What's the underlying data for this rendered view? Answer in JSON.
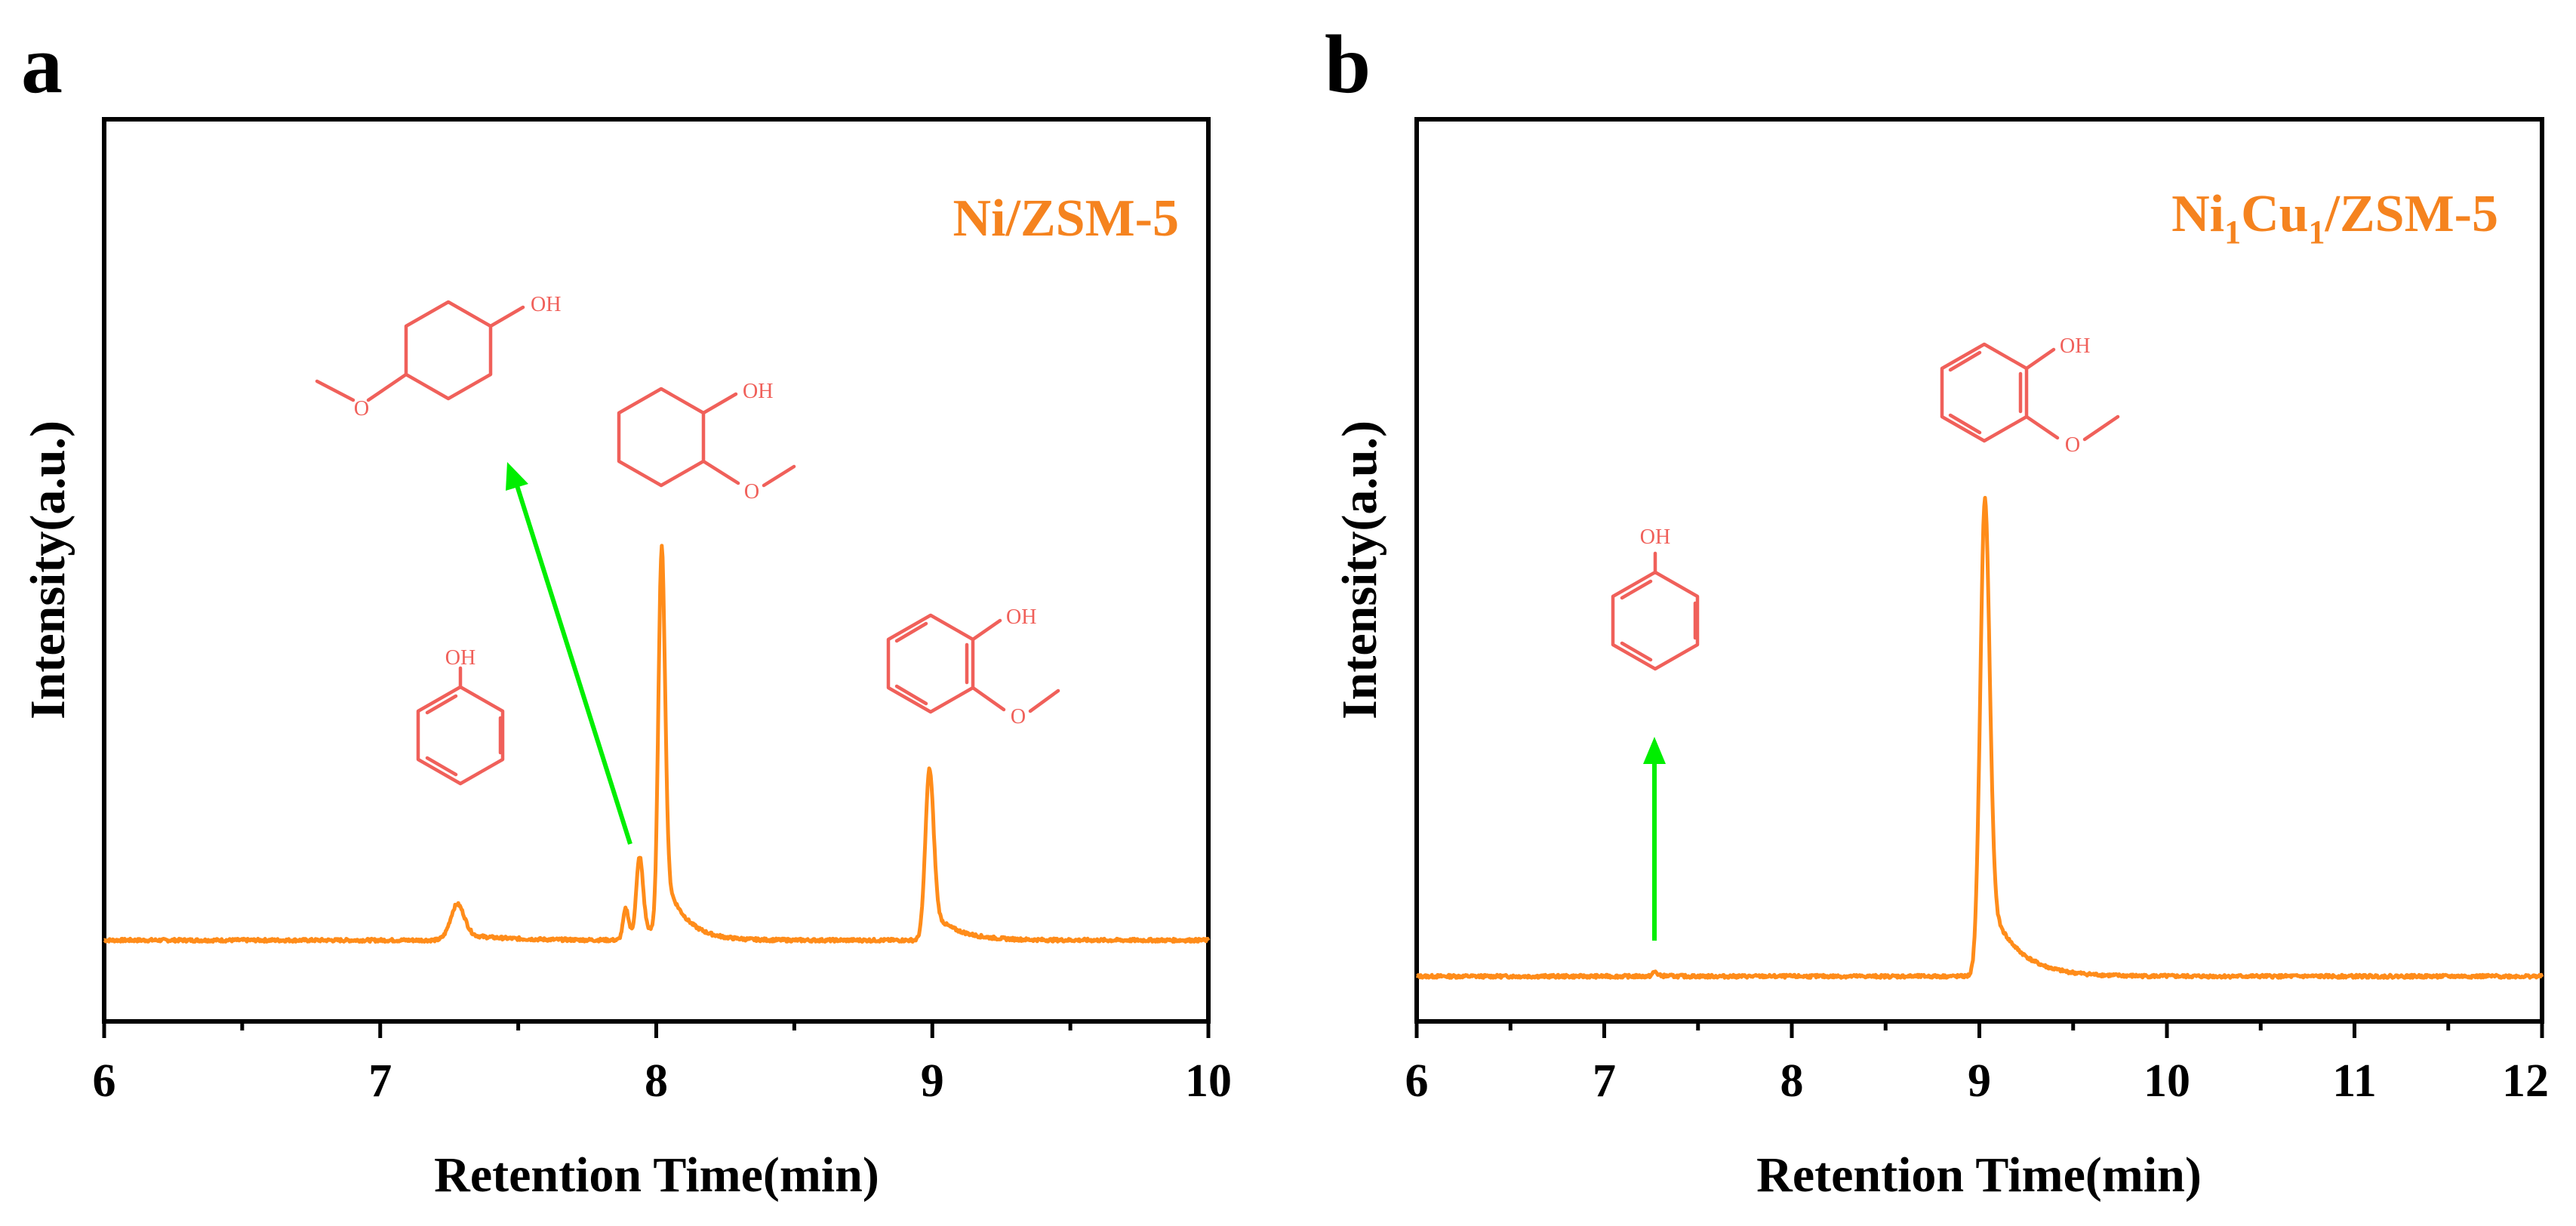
{
  "colors": {
    "trace": "#ff8c1a",
    "label": "#f5831f",
    "molecule": "#f0605a",
    "arrow": "#00ee00",
    "axis": "#000000"
  },
  "chart_data": [
    {
      "panel_letter": "a",
      "type": "line",
      "series_label": "Ni/ZSM-5",
      "xlabel": "Retention Time(min)",
      "ylabel": "Intensity(a.u.)",
      "xlim": [
        6,
        10
      ],
      "ylim": [
        0,
        100
      ],
      "xticks": [
        "6",
        "7",
        "8",
        "9",
        "10"
      ],
      "baseline": 9,
      "peaks": [
        {
          "x": 7.28,
          "height": 4,
          "width": 0.025
        },
        {
          "x": 7.89,
          "height": 3.5,
          "width": 0.01
        },
        {
          "x": 7.94,
          "height": 9,
          "width": 0.012
        },
        {
          "x": 8.02,
          "height": 43,
          "width": 0.012
        },
        {
          "x": 8.99,
          "height": 19,
          "width": 0.015
        }
      ],
      "annotations": [
        {
          "molecule": "phenol",
          "label": "OH"
        },
        {
          "molecule": "4-methoxycyclohexanol",
          "label": "OH",
          "label2": "O"
        },
        {
          "molecule": "2-methoxycyclohexanol",
          "label": "OH",
          "label2": "O"
        },
        {
          "molecule": "guaiacol",
          "label": "OH",
          "label2": "O"
        }
      ]
    },
    {
      "panel_letter": "b",
      "type": "line",
      "series_label": "Ni",
      "series_label_sub1": "1",
      "series_label_mid": "Cu",
      "series_label_sub2": "1",
      "series_label_end": "/ZSM-5",
      "xlabel": "Retention Time(min)",
      "ylabel": "Intensity(a.u.)",
      "xlim": [
        6,
        12
      ],
      "ylim": [
        0,
        100
      ],
      "xticks": [
        "6",
        "7",
        "8",
        "9",
        "10",
        "11",
        "12"
      ],
      "baseline": 5,
      "peaks": [
        {
          "x": 7.27,
          "height": 0.5,
          "width": 0.012
        },
        {
          "x": 9.03,
          "height": 53,
          "width": 0.025
        }
      ],
      "annotations": [
        {
          "molecule": "phenol",
          "label": "OH"
        },
        {
          "molecule": "guaiacol",
          "label": "OH",
          "label2": "O"
        }
      ]
    }
  ]
}
